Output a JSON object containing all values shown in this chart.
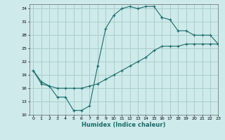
{
  "xlabel": "Humidex (Indice chaleur)",
  "bg_color": "#ceeaea",
  "grid_color": "#aacece",
  "line_color": "#1a6b6b",
  "xlim": [
    -0.5,
    23
  ],
  "ylim": [
    10,
    35
  ],
  "yticks": [
    10,
    13,
    16,
    19,
    22,
    25,
    28,
    31,
    34
  ],
  "xticks": [
    0,
    1,
    2,
    3,
    4,
    5,
    6,
    7,
    8,
    9,
    10,
    11,
    12,
    13,
    14,
    15,
    16,
    17,
    18,
    19,
    20,
    21,
    22,
    23
  ],
  "curve1_x": [
    0,
    1,
    2,
    3,
    4,
    5,
    6,
    7,
    8,
    9,
    10,
    11,
    12,
    13,
    14,
    15,
    16
  ],
  "curve1_y": [
    20,
    17.5,
    16.5,
    14,
    14,
    11,
    11,
    12,
    21,
    29.5,
    32.5,
    34,
    34.5,
    34,
    34.5,
    34.5,
    32
  ],
  "curve2_x": [
    16,
    17,
    18,
    19,
    20,
    21,
    22,
    23
  ],
  "curve2_y": [
    32,
    31.5,
    29,
    29,
    28,
    28,
    28,
    26
  ],
  "curve3_x": [
    0,
    1,
    2,
    3,
    4,
    5,
    6,
    7,
    8,
    9,
    10,
    11,
    12,
    13,
    14,
    15,
    16,
    17,
    18,
    19,
    20,
    21,
    22,
    23
  ],
  "curve3_y": [
    20,
    17,
    16.5,
    16,
    16,
    16,
    16,
    16.5,
    17,
    18,
    19,
    20,
    21,
    22,
    23,
    24.5,
    25.5,
    25.5,
    25.5,
    26,
    26,
    26,
    26,
    26
  ]
}
